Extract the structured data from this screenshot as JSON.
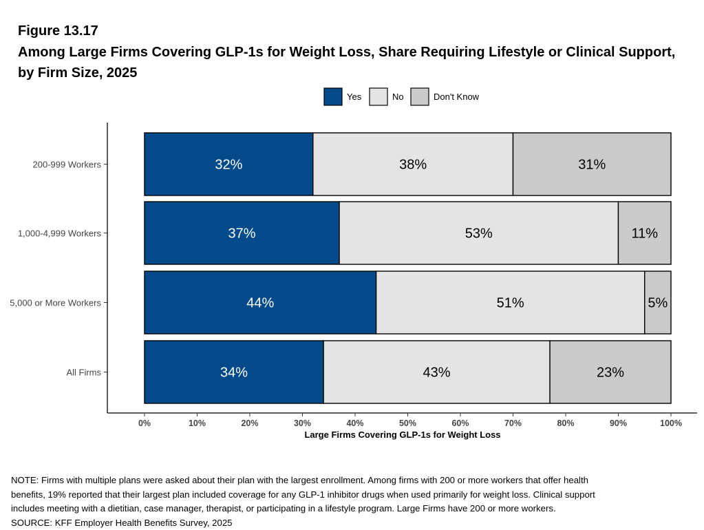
{
  "figure": {
    "number": "Figure 13.17",
    "title": "Among Large Firms Covering GLP-1s for Weight Loss, Share Requiring Lifestyle or Clinical Support, by Firm Size, 2025"
  },
  "colors": {
    "Yes": "#034a8a",
    "No": "#e4e4e4",
    "Don't Know": "#cbcbcb"
  },
  "chart_data": {
    "type": "bar",
    "orientation": "horizontal",
    "stacked": true,
    "categories": [
      "200-999 Workers",
      "1,000-4,999 Workers",
      "5,000 or More Workers",
      "All Firms"
    ],
    "series": [
      {
        "name": "Yes",
        "values": [
          32,
          37,
          44,
          34
        ],
        "labels": [
          "32%",
          "37%",
          "44%",
          "34%"
        ]
      },
      {
        "name": "No",
        "values": [
          38,
          53,
          51,
          43
        ],
        "labels": [
          "38%",
          "53%",
          "51%",
          "43%"
        ]
      },
      {
        "name": "Don't Know",
        "values": [
          31,
          11,
          5,
          23
        ],
        "labels": [
          "31%",
          "11%",
          "5%",
          "23%"
        ]
      }
    ],
    "xlabel": "Large Firms Covering GLP-1s for Weight Loss",
    "ylabel": "",
    "xlim": [
      0,
      100
    ],
    "xticks": [
      "0%",
      "10%",
      "20%",
      "30%",
      "40%",
      "50%",
      "60%",
      "70%",
      "80%",
      "90%",
      "100%"
    ],
    "legend": [
      "Yes",
      "No",
      "Don't Know"
    ],
    "legend_position": "top",
    "grid": false
  },
  "note": {
    "lines": [
      "NOTE: Firms with multiple plans were asked about their plan with the largest enrollment.  Among firms with 200 or more workers that offer health",
      "benefits, 19% reported that their largest plan included coverage for any GLP-1 inhibitor drugs when used primarily for weight loss. Clinical support",
      "includes meeting with a dietitian, case manager, therapist, or participating in a lifestyle program. Large Firms have 200 or more workers."
    ],
    "source": "SOURCE: KFF Employer Health Benefits Survey, 2025"
  }
}
